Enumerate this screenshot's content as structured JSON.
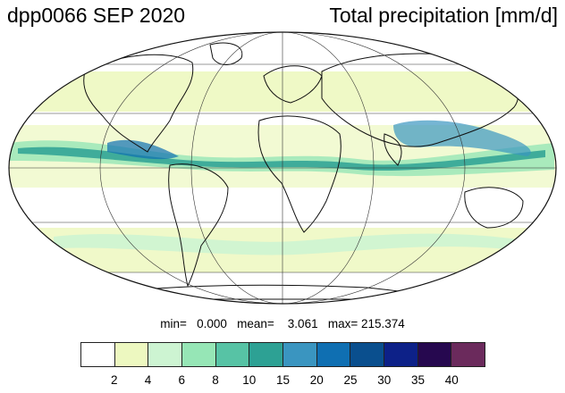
{
  "header": {
    "experiment": "dpp0066 SEP 2020",
    "variable": "Total precipitation [mm/d]"
  },
  "stats_line": "min=   0.000   mean=    3.061   max= 215.374",
  "stats": {
    "min": 0.0,
    "mean": 3.061,
    "max": 215.374
  },
  "projection": "Mollweide",
  "colorbar": {
    "colors": [
      "#ffffff",
      "#edf8c0",
      "#cdf4d2",
      "#96e6b6",
      "#57c3a5",
      "#2da194",
      "#3a95c0",
      "#0f6fb2",
      "#0a4f8e",
      "#0d2188",
      "#26084f",
      "#6b2a5c"
    ],
    "labels": [
      "2",
      "4",
      "6",
      "8",
      "10",
      "15",
      "20",
      "25",
      "30",
      "35",
      "40"
    ]
  }
}
